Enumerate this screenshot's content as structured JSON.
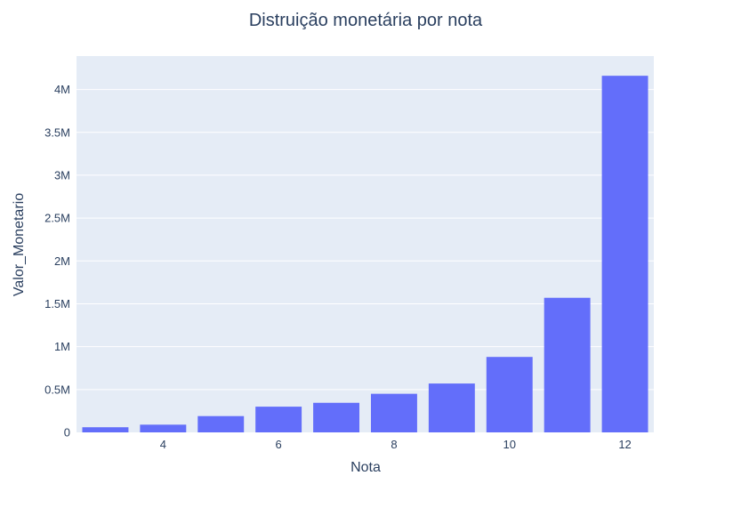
{
  "chart_data": {
    "type": "bar",
    "title": "Distruição monetária por nota",
    "xlabel": "Nota",
    "ylabel": "Valor_Monetario",
    "x": [
      3,
      4,
      5,
      6,
      7,
      8,
      9,
      10,
      11,
      12
    ],
    "values": [
      60000,
      90000,
      190000,
      300000,
      345000,
      450000,
      570000,
      880000,
      1570000,
      4160000
    ],
    "xlim": [
      2.5,
      12.5
    ],
    "ylim": [
      0,
      4390000
    ],
    "xticks": [
      {
        "value": 4,
        "label": "4"
      },
      {
        "value": 6,
        "label": "6"
      },
      {
        "value": 8,
        "label": "8"
      },
      {
        "value": 10,
        "label": "10"
      },
      {
        "value": 12,
        "label": "12"
      }
    ],
    "yticks": [
      {
        "value": 0,
        "label": "0"
      },
      {
        "value": 500000,
        "label": "0.5M"
      },
      {
        "value": 1000000,
        "label": "1M"
      },
      {
        "value": 1500000,
        "label": "1.5M"
      },
      {
        "value": 2000000,
        "label": "2M"
      },
      {
        "value": 2500000,
        "label": "2.5M"
      },
      {
        "value": 3000000,
        "label": "3M"
      },
      {
        "value": 3500000,
        "label": "3.5M"
      },
      {
        "value": 4000000,
        "label": "4M"
      }
    ],
    "grid": true,
    "colors": {
      "bar": "#636efa",
      "plot_bg": "#e5ecf6",
      "grid": "#ffffff",
      "text": "#2a3f5f"
    }
  }
}
